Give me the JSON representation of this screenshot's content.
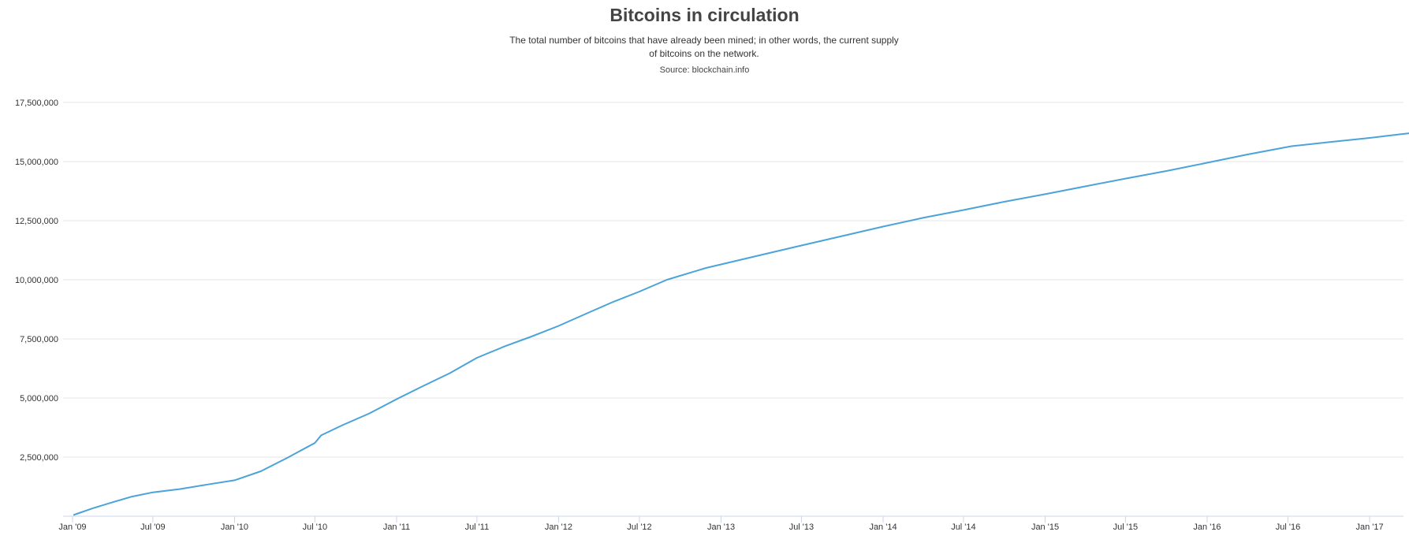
{
  "chart_data": {
    "type": "line",
    "title": "Bitcoins in circulation",
    "subtitle": "The total number of bitcoins that have already been mined; in other words, the current supply of bitcoins on the network.",
    "source": "Source: blockchain.info",
    "xlabel": "",
    "ylabel": "",
    "xlim": [
      "2009-01-03",
      "2017-04-01"
    ],
    "ylim": [
      0,
      17500000
    ],
    "grid": true,
    "legend": "none",
    "line_color": "#4aa3d9",
    "y_ticks": [
      2500000,
      5000000,
      7500000,
      10000000,
      12500000,
      15000000,
      17500000
    ],
    "y_tick_labels": [
      "2,500,000",
      "5,000,000",
      "7,500,000",
      "10,000,000",
      "12,500,000",
      "15,000,000",
      "17,500,000"
    ],
    "x_ticks": [
      "2009-01-01",
      "2009-07-01",
      "2010-01-01",
      "2010-07-01",
      "2011-01-01",
      "2011-07-01",
      "2012-01-01",
      "2012-07-01",
      "2013-01-01",
      "2013-07-01",
      "2014-01-01",
      "2014-07-01",
      "2015-01-01",
      "2015-07-01",
      "2016-01-01",
      "2016-07-01",
      "2017-01-01"
    ],
    "x_tick_labels": [
      "Jan '09",
      "Jul '09",
      "Jan '10",
      "Jul '10",
      "Jan '11",
      "Jul '11",
      "Jan '12",
      "Jul '12",
      "Jan '13",
      "Jul '13",
      "Jan '14",
      "Jul '14",
      "Jan '15",
      "Jul '15",
      "Jan '16",
      "Jul '16",
      "Jan '17"
    ],
    "series": [
      {
        "x": [
          "2009-01-03",
          "2009-02-15",
          "2009-04-01",
          "2009-05-15",
          "2009-07-01",
          "2009-09-01",
          "2009-11-01",
          "2010-01-01",
          "2010-03-01",
          "2010-05-01",
          "2010-07-01",
          "2010-07-15",
          "2010-09-01",
          "2010-11-01",
          "2011-01-01",
          "2011-03-01",
          "2011-05-01",
          "2011-07-01",
          "2011-09-01",
          "2011-11-01",
          "2012-01-01",
          "2012-03-01",
          "2012-05-01",
          "2012-07-01",
          "2012-09-01",
          "2012-11-28",
          "2013-01-01",
          "2013-04-01",
          "2013-07-01",
          "2013-10-01",
          "2014-01-01",
          "2014-04-01",
          "2014-07-01",
          "2014-10-01",
          "2015-01-01",
          "2015-04-01",
          "2015-07-01",
          "2015-10-01",
          "2016-01-01",
          "2016-04-01",
          "2016-07-09",
          "2016-10-01",
          "2017-01-01",
          "2017-04-01"
        ],
        "y": [
          50000,
          330000,
          590000,
          830000,
          1010000,
          1150000,
          1340000,
          1520000,
          1900000,
          2480000,
          3100000,
          3420000,
          3850000,
          4350000,
          4950000,
          5500000,
          6050000,
          6700000,
          7180000,
          7600000,
          8050000,
          8550000,
          9050000,
          9500000,
          10000000,
          10500000,
          10650000,
          11050000,
          11450000,
          11850000,
          12250000,
          12620000,
          12950000,
          13300000,
          13620000,
          13950000,
          14280000,
          14600000,
          14950000,
          15300000,
          15650000,
          15820000,
          16000000,
          16200000
        ]
      }
    ]
  }
}
